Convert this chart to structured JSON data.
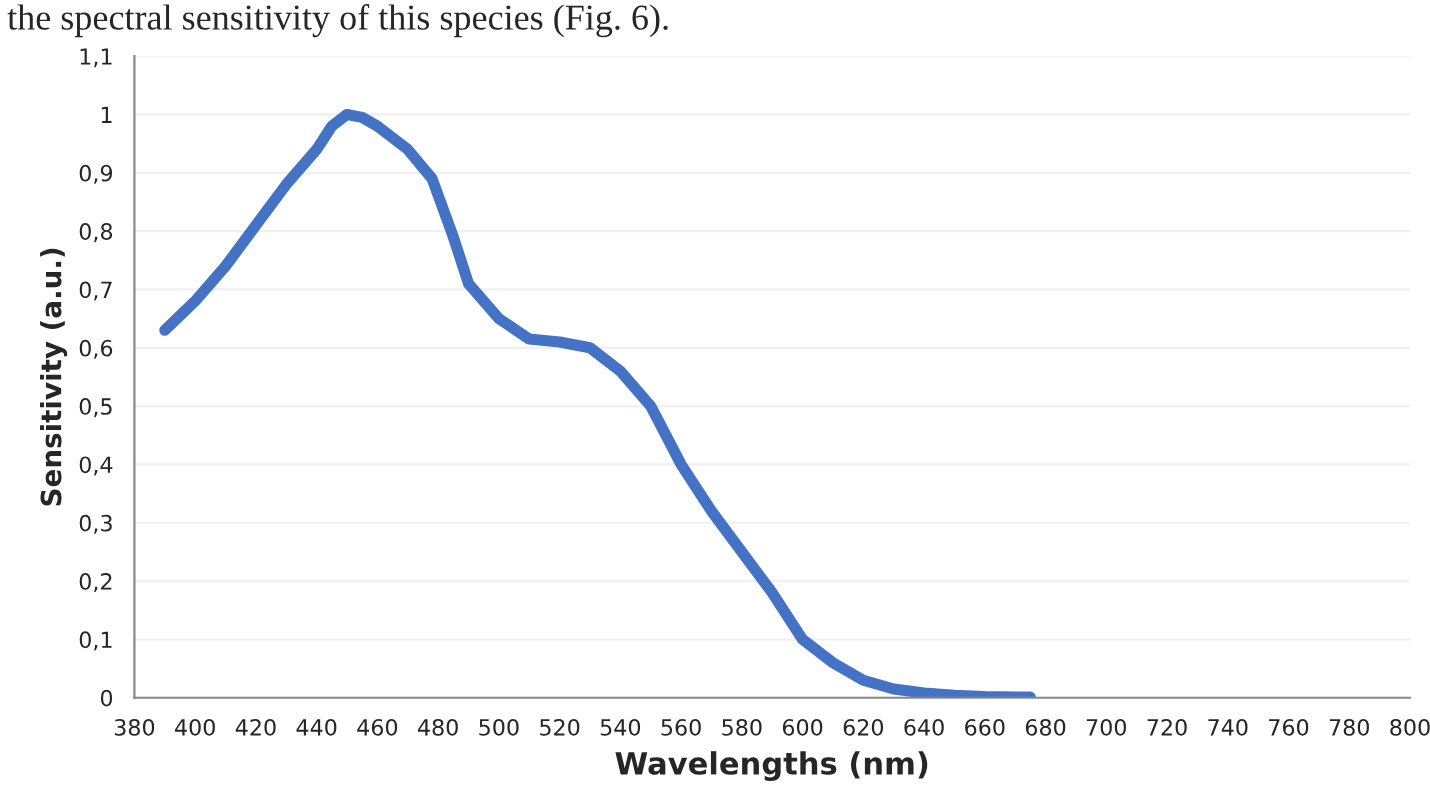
{
  "chart_data": {
    "type": "line",
    "xlabel": "Wavelengths (nm)",
    "ylabel": "Sensitivity (a.u.)",
    "annotations": [
      "the spectral sensitivity of this species (Fig. 6)."
    ],
    "x": [
      390,
      400,
      410,
      420,
      430,
      440,
      445,
      450,
      455,
      460,
      470,
      478,
      485,
      490,
      500,
      510,
      520,
      530,
      540,
      550,
      560,
      570,
      580,
      590,
      600,
      610,
      620,
      630,
      640,
      650,
      660,
      675
    ],
    "series": [
      {
        "color": "#4472c4",
        "values": [
          0.63,
          0.68,
          0.74,
          0.81,
          0.88,
          0.94,
          0.98,
          1.0,
          0.995,
          0.98,
          0.94,
          0.89,
          0.79,
          0.71,
          0.65,
          0.615,
          0.61,
          0.6,
          0.56,
          0.5,
          0.4,
          0.32,
          0.25,
          0.18,
          0.1,
          0.06,
          0.03,
          0.015,
          0.008,
          0.004,
          0.002,
          0.001
        ]
      }
    ],
    "xlim": [
      380,
      800
    ],
    "xticks": [
      380,
      400,
      420,
      440,
      460,
      480,
      500,
      520,
      540,
      560,
      580,
      600,
      620,
      640,
      660,
      680,
      700,
      720,
      740,
      760,
      780,
      800
    ],
    "ylim": [
      0,
      1.1
    ],
    "yticks": [
      0,
      {
        "value": 0.1,
        "label": "0,1"
      },
      {
        "value": 0.2,
        "label": "0,2"
      },
      {
        "value": 0.3,
        "label": "0,3"
      },
      {
        "value": 0.4,
        "label": "0,4"
      },
      {
        "value": 0.5,
        "label": "0,5"
      },
      {
        "value": 0.6,
        "label": "0,6"
      },
      {
        "value": 0.7,
        "label": "0,7"
      },
      {
        "value": 0.8,
        "label": "0,8"
      },
      {
        "value": 0.9,
        "label": "0,9"
      },
      1,
      {
        "value": 1.1,
        "label": "1,1"
      }
    ],
    "grid": "y",
    "marker": "none",
    "line_style": "solid"
  }
}
